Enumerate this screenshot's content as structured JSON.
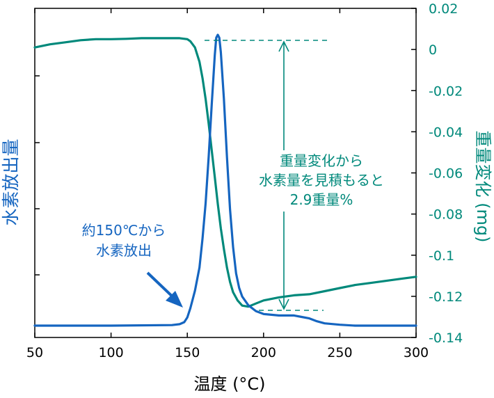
{
  "chart_data": {
    "type": "line",
    "xlabel": "温度 (°C)",
    "ylabel_left": "水素放出量",
    "ylabel_right": "重量変化 (mg)",
    "xlim": [
      50,
      300
    ],
    "ylim_right": [
      -0.14,
      0.02
    ],
    "x_ticks": [
      "50",
      "100",
      "150",
      "200",
      "250",
      "300"
    ],
    "x_tick_values": [
      50,
      100,
      150,
      200,
      250,
      300
    ],
    "y_right_ticks": [
      "0.02",
      "0",
      "-0.02",
      "-0.04",
      "-0.06",
      "-0.08",
      "-0.1",
      "-0.12",
      "-0.14"
    ],
    "y_right_tick_values": [
      0.02,
      0,
      -0.02,
      -0.04,
      -0.06,
      -0.08,
      -0.1,
      -0.12,
      -0.14
    ],
    "grid": false,
    "colors": {
      "hydrogen": "#1565c0",
      "weight": "#00897b",
      "axis": "#000000"
    },
    "series": [
      {
        "key": "weight",
        "axis": "right",
        "x": [
          50,
          60,
          70,
          80,
          90,
          100,
          110,
          120,
          130,
          140,
          145,
          150,
          152,
          155,
          158,
          160,
          162,
          164,
          166,
          168,
          170,
          172,
          174,
          176,
          178,
          180,
          183,
          186,
          190,
          195,
          200,
          210,
          220,
          230,
          240,
          250,
          260,
          270,
          280,
          290,
          300
        ],
        "values": [
          0.001,
          0.0025,
          0.0035,
          0.0045,
          0.005,
          0.005,
          0.0052,
          0.0055,
          0.0055,
          0.0055,
          0.0055,
          0.005,
          0.004,
          0.001,
          -0.006,
          -0.014,
          -0.024,
          -0.036,
          -0.049,
          -0.062,
          -0.075,
          -0.087,
          -0.097,
          -0.106,
          -0.113,
          -0.118,
          -0.122,
          -0.1245,
          -0.125,
          -0.1235,
          -0.122,
          -0.1205,
          -0.1195,
          -0.119,
          -0.1175,
          -0.116,
          -0.1145,
          -0.1135,
          -0.1125,
          -0.1115,
          -0.1105
        ]
      },
      {
        "key": "hydrogen",
        "axis": "left",
        "x": [
          50,
          100,
          140,
          145,
          148,
          150,
          152,
          155,
          158,
          160,
          162,
          164,
          166,
          168,
          169,
          170,
          171,
          172,
          174,
          176,
          178,
          180,
          182,
          184,
          186,
          190,
          195,
          200,
          210,
          220,
          225,
          230,
          235,
          240,
          250,
          260,
          270,
          300
        ],
        "values": [
          0.0,
          0.0,
          0.002,
          0.005,
          0.012,
          0.028,
          0.06,
          0.12,
          0.2,
          0.3,
          0.42,
          0.58,
          0.76,
          0.93,
          0.99,
          1.0,
          0.99,
          0.94,
          0.78,
          0.58,
          0.4,
          0.27,
          0.18,
          0.13,
          0.1,
          0.07,
          0.05,
          0.04,
          0.035,
          0.035,
          0.03,
          0.025,
          0.015,
          0.008,
          0.003,
          0.0,
          0.0,
          0.0
        ]
      }
    ],
    "annotations": {
      "mass_change_text": [
        "重量変化から",
        "水素量を見積もると",
        "2.9重量%"
      ],
      "onset_text": [
        "約150℃から",
        "水素放出"
      ]
    }
  }
}
